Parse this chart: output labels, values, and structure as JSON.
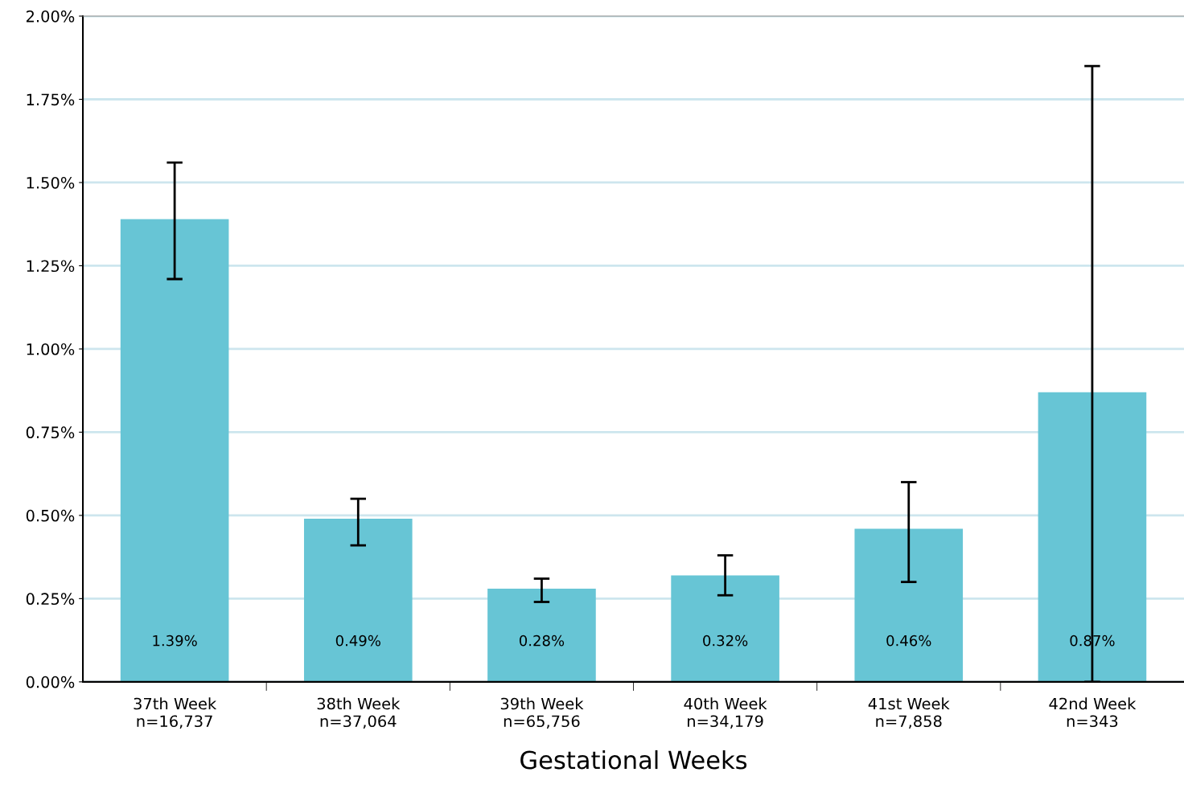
{
  "chart_data": {
    "type": "bar",
    "xlabel": "Gestational Weeks",
    "categories": [
      "37th Week\nn=16,737",
      "38th Week\nn=37,064",
      "39th Week\nn=65,756",
      "40th Week\nn=34,179",
      "41st Week\nn=7,858",
      "42nd Week\nn=343"
    ],
    "values": [
      1.39,
      0.49,
      0.28,
      0.32,
      0.46,
      0.87
    ],
    "value_labels": [
      "1.39%",
      "0.49%",
      "0.28%",
      "0.32%",
      "0.46%",
      "0.87%"
    ],
    "errors": [
      [
        1.21,
        1.56
      ],
      [
        0.41,
        0.55
      ],
      [
        0.24,
        0.31
      ],
      [
        0.26,
        0.38
      ],
      [
        0.3,
        0.6
      ],
      [
        0.0,
        1.85
      ]
    ],
    "color": "#67c5d5",
    "ylim": [
      0,
      2
    ],
    "yticks": [
      {
        "value": 0,
        "label": "0.00%"
      },
      {
        "value": 0.25,
        "label": "0.25%"
      },
      {
        "value": 0.5,
        "label": "0.50%"
      },
      {
        "value": 0.75,
        "label": "0.75%"
      },
      {
        "value": 1,
        "label": "1.00%"
      },
      {
        "value": 1.25,
        "label": "1.25%"
      },
      {
        "value": 1.5,
        "label": "1.50%"
      },
      {
        "value": 1.75,
        "label": "1.75%"
      },
      {
        "value": 2,
        "label": "2.00%"
      }
    ],
    "grid": "y",
    "legend": false
  }
}
